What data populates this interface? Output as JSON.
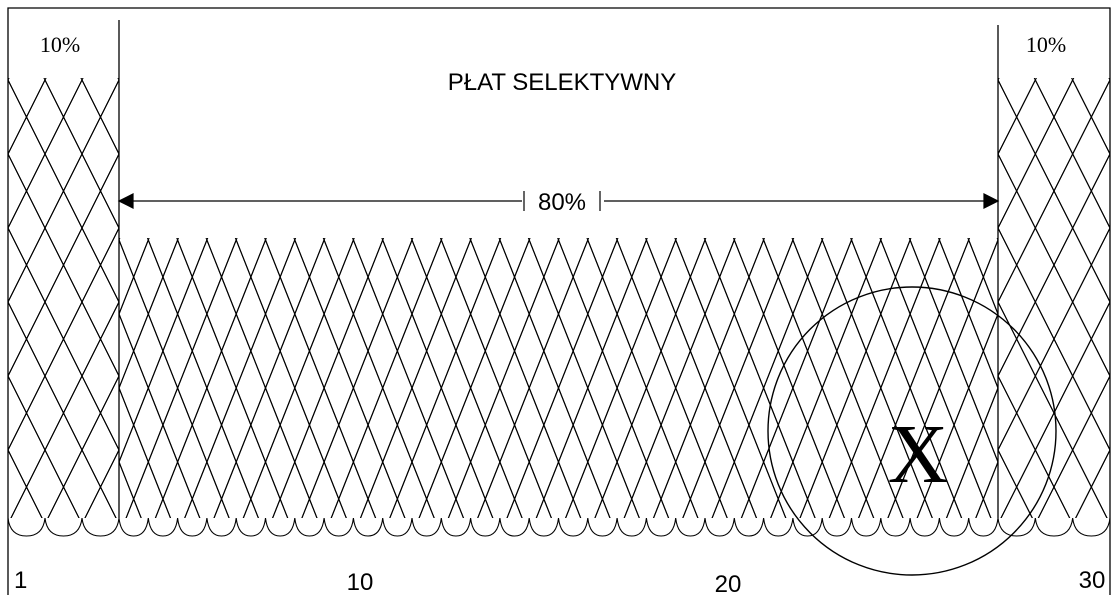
{
  "left_label": "10%",
  "right_label": "10%",
  "title": "PŁAT SELEKTYWNY",
  "span_label": "80%",
  "marker": "X",
  "scale": [
    "1",
    "10",
    "20",
    "30"
  ]
}
